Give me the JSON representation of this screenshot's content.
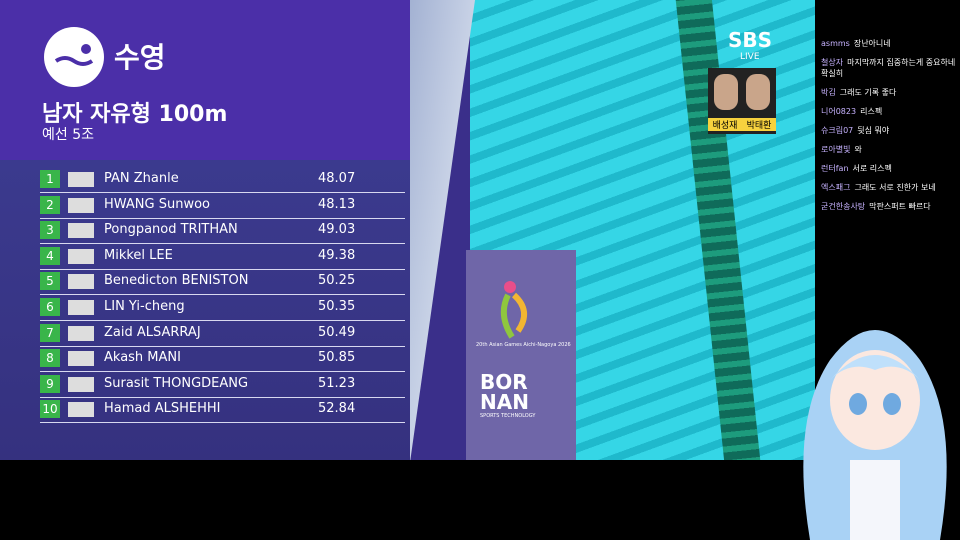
{
  "header": {
    "sport": "수영",
    "event": "남자 자유형 100m",
    "heat": "예선 5조"
  },
  "results": [
    {
      "rank": 1,
      "name": "PAN Zhanle",
      "time": "48.07"
    },
    {
      "rank": 2,
      "name": "HWANG Sunwoo",
      "time": "48.13"
    },
    {
      "rank": 3,
      "name": "Pongpanod TRITHAN",
      "time": "49.03"
    },
    {
      "rank": 4,
      "name": "Mikkel LEE",
      "time": "49.38"
    },
    {
      "rank": 5,
      "name": "Benedicton BENISTON",
      "time": "50.25"
    },
    {
      "rank": 6,
      "name": "LIN Yi-cheng",
      "time": "50.35"
    },
    {
      "rank": 7,
      "name": "Zaid ALSARRAJ",
      "time": "50.49"
    },
    {
      "rank": 8,
      "name": "Akash MANI",
      "time": "50.85"
    },
    {
      "rank": 9,
      "name": "Surasit THONGDEANG",
      "time": "51.23"
    },
    {
      "rank": 10,
      "name": "Hamad ALSHEHHI",
      "time": "52.84"
    }
  ],
  "broadcaster": {
    "logo": "SBS",
    "live": "LIVE",
    "commentators": [
      "배성재",
      "박태환"
    ]
  },
  "games_logo": "20th Asian Games Aichi-Nagoya 2026",
  "sponsor": {
    "line1": "BOR",
    "line2": "NAN",
    "tagline": "SPORTS TECHNOLOGY"
  },
  "chat": [
    {
      "user": "asmms",
      "text": "장난아니네"
    },
    {
      "user": "철상자",
      "text": "마지막까지 집중하는게 중요하네 확실히"
    },
    {
      "user": "박김",
      "text": "그래도 기록 좋다"
    },
    {
      "user": "니어0823",
      "text": "리스펙"
    },
    {
      "user": "슈크림07",
      "text": "뒷심 뭐야"
    },
    {
      "user": "로아별빛",
      "text": "와"
    },
    {
      "user": "런터fan",
      "text": "서로 리스펙"
    },
    {
      "user": "엑스패그",
      "text": "그래도 서로 진한가 보네"
    },
    {
      "user": "굳건한송사탕",
      "text": "막판스퍼트 빠르다"
    }
  ]
}
